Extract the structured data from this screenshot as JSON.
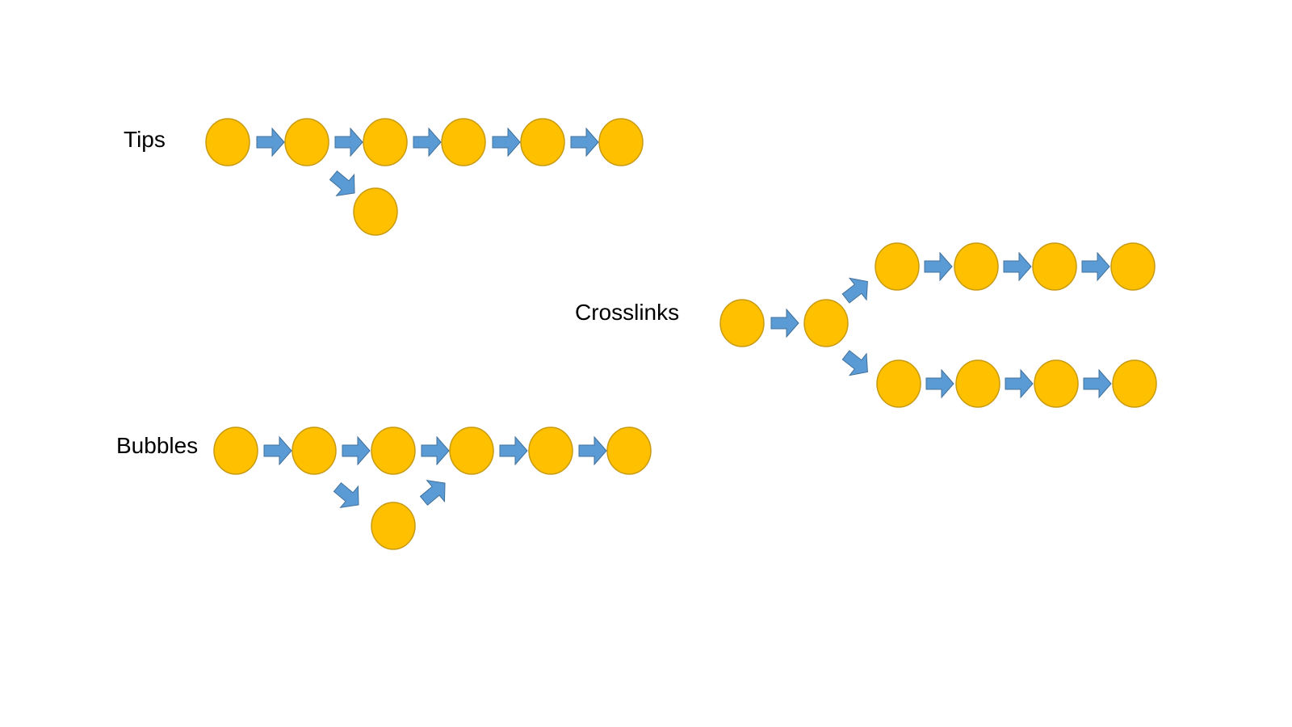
{
  "labels": {
    "tips": "Tips",
    "crosslinks": "Crosslinks",
    "bubbles": "Bubbles"
  },
  "colors": {
    "node_fill": "#FFC000",
    "node_stroke": "#C89A10",
    "arrow_fill": "#5B9BD5",
    "arrow_stroke": "#41719C",
    "background": "#FFFFFF"
  },
  "shapes": {
    "node": "circle",
    "edge": "block-arrow-icon"
  }
}
